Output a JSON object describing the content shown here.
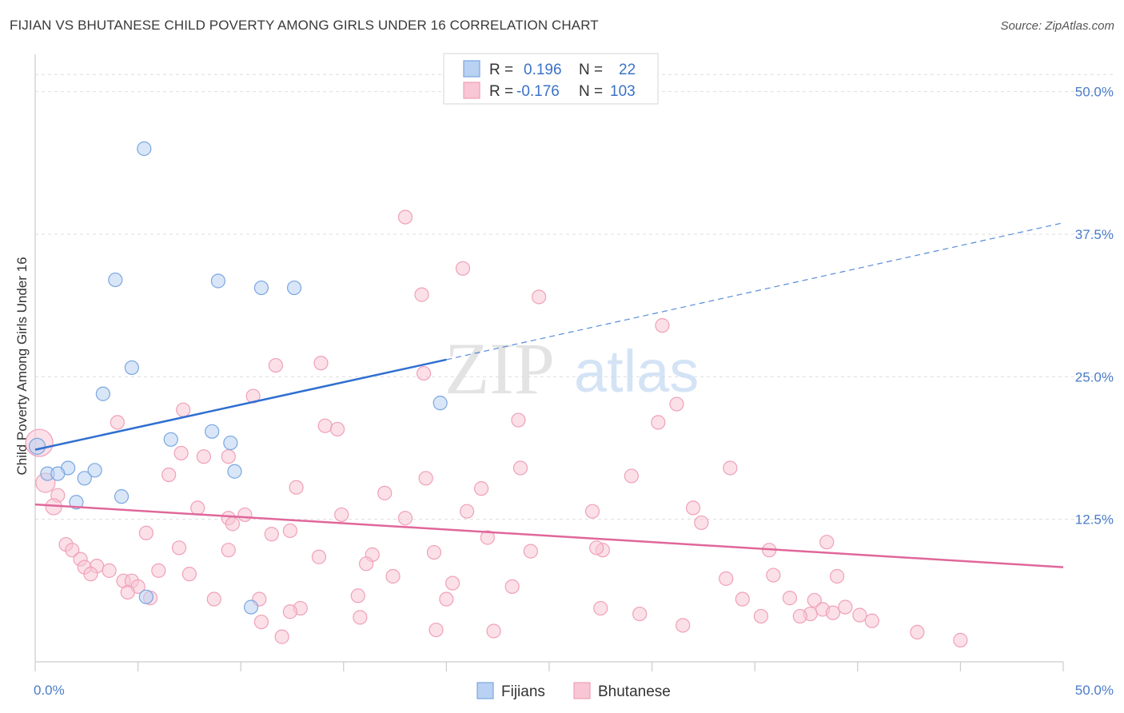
{
  "title": "FIJIAN VS BHUTANESE CHILD POVERTY AMONG GIRLS UNDER 16 CORRELATION CHART",
  "source": "Source: ZipAtlas.com",
  "watermark": {
    "zip": "ZIP",
    "atlas": "atlas"
  },
  "chart_data": {
    "type": "scatter",
    "title": "FIJIAN VS BHUTANESE CHILD POVERTY AMONG GIRLS UNDER 16 CORRELATION CHART",
    "xlabel": "",
    "ylabel": "Child Poverty Among Girls Under 16",
    "xlim": [
      0,
      50
    ],
    "ylim": [
      0,
      52.5
    ],
    "x_tick_labels": [
      "0.0%",
      "50.0%"
    ],
    "y_ticks": [
      12.5,
      25.0,
      37.5,
      50.0
    ],
    "y_tick_labels": [
      "12.5%",
      "25.0%",
      "37.5%",
      "50.0%"
    ],
    "grid": true,
    "legend_position": "top-center",
    "stats": [
      {
        "r_label": "R =",
        "r": "0.196",
        "n_label": "N =",
        "n": "22"
      },
      {
        "r_label": "R =",
        "r": "-0.176",
        "n_label": "N =",
        "n": "103"
      }
    ],
    "series": [
      {
        "name": "Fijians",
        "color": "#7aa6e0",
        "fill": "#b9d1f2",
        "line_color": "#2f6fd0",
        "trend": {
          "x_start": 0,
          "y_start": 18.6,
          "x_solid_end": 20,
          "y_solid_end": 26.5,
          "x_end": 50,
          "y_end": 38.5
        },
        "points": [
          [
            5.3,
            45.0
          ],
          [
            3.9,
            33.5
          ],
          [
            8.9,
            33.4
          ],
          [
            11.0,
            32.8
          ],
          [
            12.6,
            32.8
          ],
          [
            4.7,
            25.8
          ],
          [
            3.3,
            23.5
          ],
          [
            19.7,
            22.7
          ],
          [
            8.6,
            20.2
          ],
          [
            6.6,
            19.5
          ],
          [
            9.5,
            19.2
          ],
          [
            0.1,
            18.9
          ],
          [
            1.6,
            17.0
          ],
          [
            2.9,
            16.8
          ],
          [
            0.6,
            16.5
          ],
          [
            1.1,
            16.5
          ],
          [
            9.7,
            16.7
          ],
          [
            2.4,
            16.1
          ],
          [
            4.2,
            14.5
          ],
          [
            2.0,
            14.0
          ],
          [
            5.4,
            5.7
          ],
          [
            10.5,
            4.8
          ]
        ]
      },
      {
        "name": "Bhutanese",
        "color": "#f0a0b8",
        "fill": "#f8c6d5",
        "line_color": "#e0679a",
        "trend": {
          "x_start": 0,
          "y_start": 13.8,
          "x_end": 50,
          "y_end": 8.3
        },
        "points": [
          [
            18.0,
            39.0
          ],
          [
            20.8,
            34.5
          ],
          [
            18.8,
            32.2
          ],
          [
            24.5,
            32.0
          ],
          [
            30.5,
            29.5
          ],
          [
            11.7,
            26.0
          ],
          [
            13.9,
            26.2
          ],
          [
            18.9,
            25.3
          ],
          [
            10.6,
            23.3
          ],
          [
            7.2,
            22.1
          ],
          [
            31.2,
            22.6
          ],
          [
            4.0,
            21.0
          ],
          [
            23.5,
            21.2
          ],
          [
            30.3,
            21.0
          ],
          [
            14.1,
            20.7
          ],
          [
            14.7,
            20.4
          ],
          [
            0.2,
            19.2
          ],
          [
            7.1,
            18.3
          ],
          [
            8.2,
            18.0
          ],
          [
            9.4,
            18.0
          ],
          [
            23.6,
            17.0
          ],
          [
            33.8,
            17.0
          ],
          [
            19.0,
            16.1
          ],
          [
            29.0,
            16.3
          ],
          [
            6.5,
            16.4
          ],
          [
            0.5,
            15.7
          ],
          [
            12.7,
            15.3
          ],
          [
            17.0,
            14.8
          ],
          [
            21.7,
            15.2
          ],
          [
            1.1,
            14.6
          ],
          [
            0.9,
            13.6
          ],
          [
            7.9,
            13.5
          ],
          [
            10.2,
            12.9
          ],
          [
            14.9,
            12.9
          ],
          [
            21.0,
            13.2
          ],
          [
            27.1,
            13.2
          ],
          [
            32.0,
            13.5
          ],
          [
            9.4,
            12.6
          ],
          [
            18.0,
            12.6
          ],
          [
            9.6,
            12.1
          ],
          [
            32.4,
            12.2
          ],
          [
            5.4,
            11.3
          ],
          [
            11.5,
            11.2
          ],
          [
            12.4,
            11.5
          ],
          [
            22.0,
            10.9
          ],
          [
            1.5,
            10.3
          ],
          [
            38.5,
            10.5
          ],
          [
            7.0,
            10.0
          ],
          [
            9.4,
            9.8
          ],
          [
            16.4,
            9.4
          ],
          [
            19.4,
            9.6
          ],
          [
            24.1,
            9.7
          ],
          [
            27.6,
            9.8
          ],
          [
            35.7,
            9.8
          ],
          [
            1.8,
            9.8
          ],
          [
            2.2,
            9.0
          ],
          [
            2.4,
            8.3
          ],
          [
            3.0,
            8.4
          ],
          [
            3.6,
            8.0
          ],
          [
            2.7,
            7.7
          ],
          [
            6.0,
            8.0
          ],
          [
            7.5,
            7.7
          ],
          [
            13.8,
            9.2
          ],
          [
            16.1,
            8.6
          ],
          [
            27.3,
            10.0
          ],
          [
            4.3,
            7.1
          ],
          [
            4.7,
            7.1
          ],
          [
            5.0,
            6.6
          ],
          [
            17.4,
            7.5
          ],
          [
            20.3,
            6.9
          ],
          [
            23.2,
            6.6
          ],
          [
            33.6,
            7.3
          ],
          [
            35.9,
            7.6
          ],
          [
            39.0,
            7.5
          ],
          [
            15.7,
            5.8
          ],
          [
            8.7,
            5.5
          ],
          [
            10.9,
            5.5
          ],
          [
            12.9,
            4.7
          ],
          [
            12.4,
            4.4
          ],
          [
            5.6,
            5.6
          ],
          [
            20.0,
            5.5
          ],
          [
            34.4,
            5.5
          ],
          [
            36.7,
            5.6
          ],
          [
            37.9,
            5.4
          ],
          [
            38.3,
            4.6
          ],
          [
            37.7,
            4.2
          ],
          [
            38.8,
            4.3
          ],
          [
            39.4,
            4.8
          ],
          [
            27.5,
            4.7
          ],
          [
            29.4,
            4.2
          ],
          [
            35.3,
            4.0
          ],
          [
            37.2,
            4.0
          ],
          [
            40.1,
            4.1
          ],
          [
            40.7,
            3.6
          ],
          [
            11.0,
            3.5
          ],
          [
            15.8,
            3.9
          ],
          [
            31.5,
            3.2
          ],
          [
            19.5,
            2.8
          ],
          [
            22.3,
            2.7
          ],
          [
            12.0,
            2.2
          ],
          [
            42.9,
            2.6
          ],
          [
            45.0,
            1.9
          ],
          [
            4.5,
            6.1
          ]
        ]
      }
    ]
  }
}
